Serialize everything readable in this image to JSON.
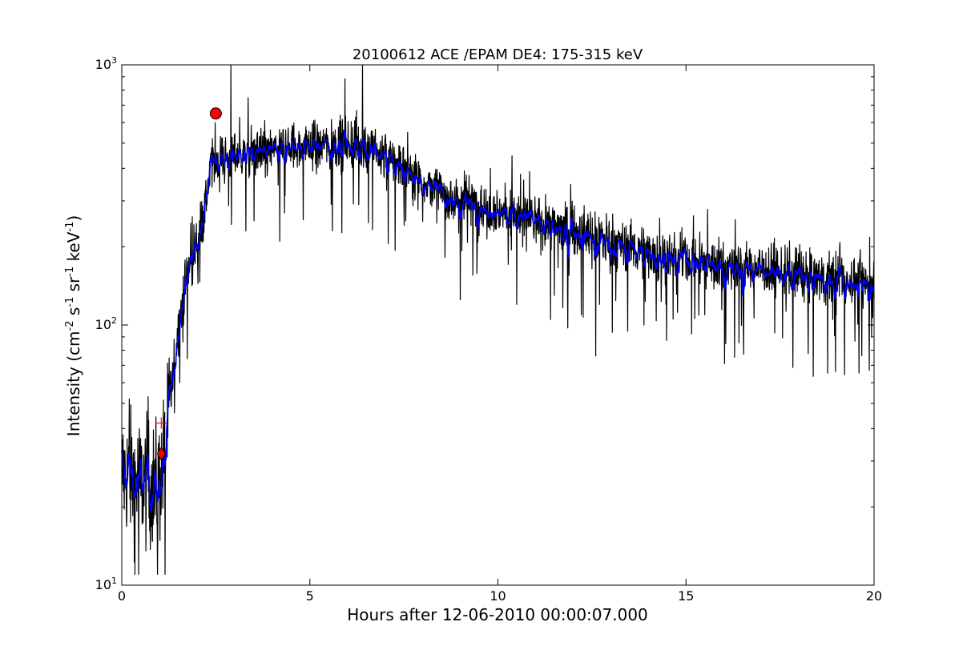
{
  "chart_data": {
    "type": "line",
    "title": "20100612 ACE /EPAM DE4: 175-315 keV",
    "xlabel": "Hours after 12-06-2010 00:00:07.000",
    "ylabel_main": "Intensity (cm",
    "ylabel_parts": [
      "-2",
      " s",
      "-1",
      " sr",
      "-1",
      " keV",
      "-1",
      ")"
    ],
    "xlim": [
      0,
      20
    ],
    "ylim": [
      10,
      1000
    ],
    "yscale": "log",
    "grid": false,
    "x_ticks": [
      {
        "value": 0,
        "label": "0"
      },
      {
        "value": 5,
        "label": "5"
      },
      {
        "value": 10,
        "label": "10"
      },
      {
        "value": 15,
        "label": "15"
      },
      {
        "value": 20,
        "label": "20"
      }
    ],
    "y_ticks": [
      {
        "value": 10,
        "base": "10",
        "exp": "1"
      },
      {
        "value": 100,
        "base": "10",
        "exp": "2"
      },
      {
        "value": 1000,
        "base": "10",
        "exp": "3"
      }
    ],
    "series": [
      {
        "style": "raw",
        "color": "#000000",
        "envelope": [
          [
            0,
            27
          ],
          [
            0.5,
            25
          ],
          [
            0.9,
            24
          ],
          [
            1.05,
            26
          ],
          [
            1.2,
            38
          ],
          [
            1.35,
            60
          ],
          [
            1.55,
            110
          ],
          [
            1.75,
            160
          ],
          [
            2.0,
            210
          ],
          [
            2.2,
            280
          ],
          [
            2.4,
            420
          ],
          [
            3,
            450
          ],
          [
            4,
            470
          ],
          [
            5,
            490
          ],
          [
            6,
            500
          ],
          [
            6.7,
            470
          ],
          [
            7.5,
            400
          ],
          [
            8.5,
            320
          ],
          [
            9.5,
            290
          ],
          [
            11,
            250
          ],
          [
            12,
            230
          ],
          [
            13,
            210
          ],
          [
            14,
            190
          ],
          [
            15,
            180
          ],
          [
            16,
            170
          ],
          [
            17,
            165
          ],
          [
            18,
            155
          ],
          [
            19,
            150
          ],
          [
            20,
            145
          ]
        ],
        "spikes": [
          [
            2.9,
            1000
          ],
          [
            6.4,
            1000
          ],
          [
            12.6,
            76
          ],
          [
            12.7,
            120
          ],
          [
            0.35,
            11
          ],
          [
            0.45,
            11
          ],
          [
            0.95,
            11
          ],
          [
            1.15,
            11
          ],
          [
            0.2,
            52
          ],
          [
            0.7,
            53
          ],
          [
            4.2,
            210
          ],
          [
            11.4,
            105
          ],
          [
            11.5,
            130
          ],
          [
            9.0,
            125
          ],
          [
            9.5,
            220
          ],
          [
            10.5,
            120
          ],
          [
            7.0,
            520
          ],
          [
            7.6,
            550
          ],
          [
            9.8,
            400
          ],
          [
            10.6,
            380
          ],
          [
            3.3,
            230
          ],
          [
            5.6,
            230
          ],
          [
            6.3,
            290
          ],
          [
            18.9,
            105
          ]
        ]
      },
      {
        "style": "smoothed",
        "color": "#0000ff"
      }
    ],
    "markers": [
      {
        "shape": "circle",
        "x": 2.5,
        "y": 650,
        "color": "#ff0000"
      },
      {
        "shape": "diamond",
        "x": 1.05,
        "y": 32,
        "color": "#ff0000"
      },
      {
        "shape": "plus",
        "x": 1.05,
        "y": 42,
        "color": "#ff0000"
      }
    ]
  }
}
